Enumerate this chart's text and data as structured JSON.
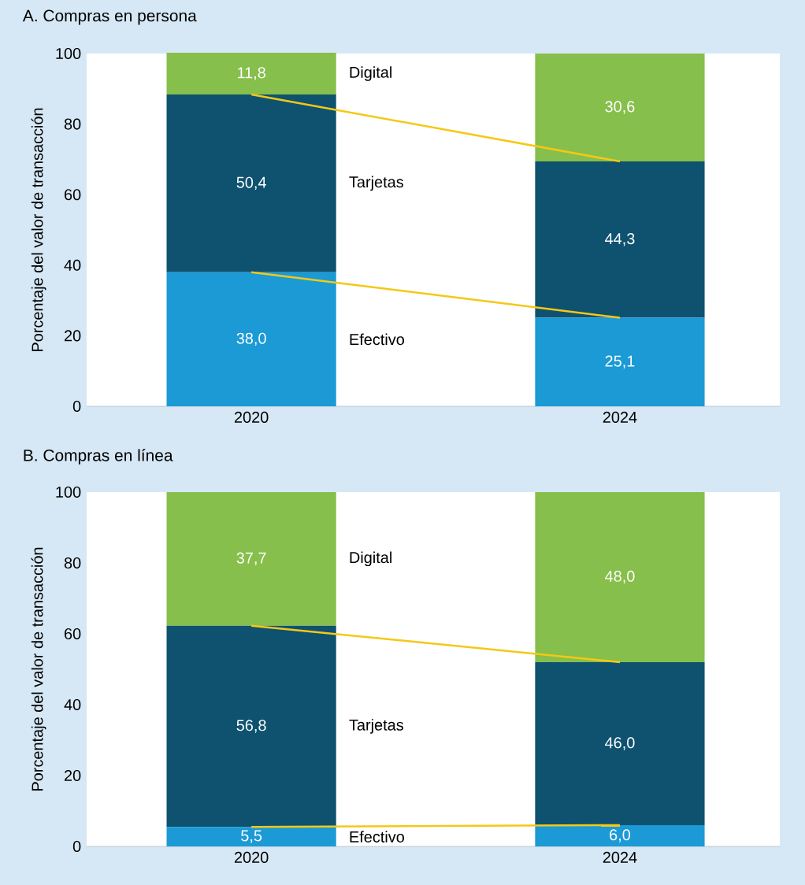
{
  "chart_data": [
    {
      "type": "bar",
      "title": "A. Compras en persona",
      "ylabel": "Porcentaje del valor de transacción",
      "categories": [
        "2020",
        "2024"
      ],
      "stacked": true,
      "ylim": [
        0,
        100
      ],
      "yticks": [
        0,
        20,
        40,
        60,
        80,
        100
      ],
      "series": [
        {
          "name": "Efectivo",
          "color": "#1b9ad6",
          "values": [
            38.0,
            25.1
          ],
          "value_labels": [
            "38,0",
            "25,1"
          ]
        },
        {
          "name": "Tarjetas",
          "color": "#0e5270",
          "values": [
            50.4,
            44.3
          ],
          "value_labels": [
            "50,4",
            "44,3"
          ]
        },
        {
          "name": "Digital",
          "color": "#86bf4b",
          "values": [
            11.8,
            30.6
          ],
          "value_labels": [
            "11,8",
            "30,6"
          ]
        },
        {
          "type": "line",
          "color": "#f5c816",
          "values": [
            38.0,
            25.1
          ]
        },
        {
          "type": "line",
          "color": "#f5c816",
          "values": [
            88.4,
            69.4
          ]
        }
      ]
    },
    {
      "type": "bar",
      "title": "B. Compras en línea",
      "ylabel": "Porcentaje del valor de transacción",
      "categories": [
        "2020",
        "2024"
      ],
      "stacked": true,
      "ylim": [
        0,
        100
      ],
      "yticks": [
        0,
        20,
        40,
        60,
        80,
        100
      ],
      "series": [
        {
          "name": "Efectivo",
          "color": "#1b9ad6",
          "values": [
            5.5,
            6.0
          ],
          "value_labels": [
            "5,5",
            "6,0"
          ]
        },
        {
          "name": "Tarjetas",
          "color": "#0e5270",
          "values": [
            56.8,
            46.0
          ],
          "value_labels": [
            "56,8",
            "46,0"
          ]
        },
        {
          "name": "Digital",
          "color": "#86bf4b",
          "values": [
            37.7,
            48.0
          ],
          "value_labels": [
            "37,7",
            "48,0"
          ]
        },
        {
          "type": "line",
          "color": "#f5c816",
          "values": [
            5.5,
            6.0
          ]
        },
        {
          "type": "line",
          "color": "#f5c816",
          "values": [
            62.3,
            52.0
          ]
        }
      ]
    }
  ]
}
